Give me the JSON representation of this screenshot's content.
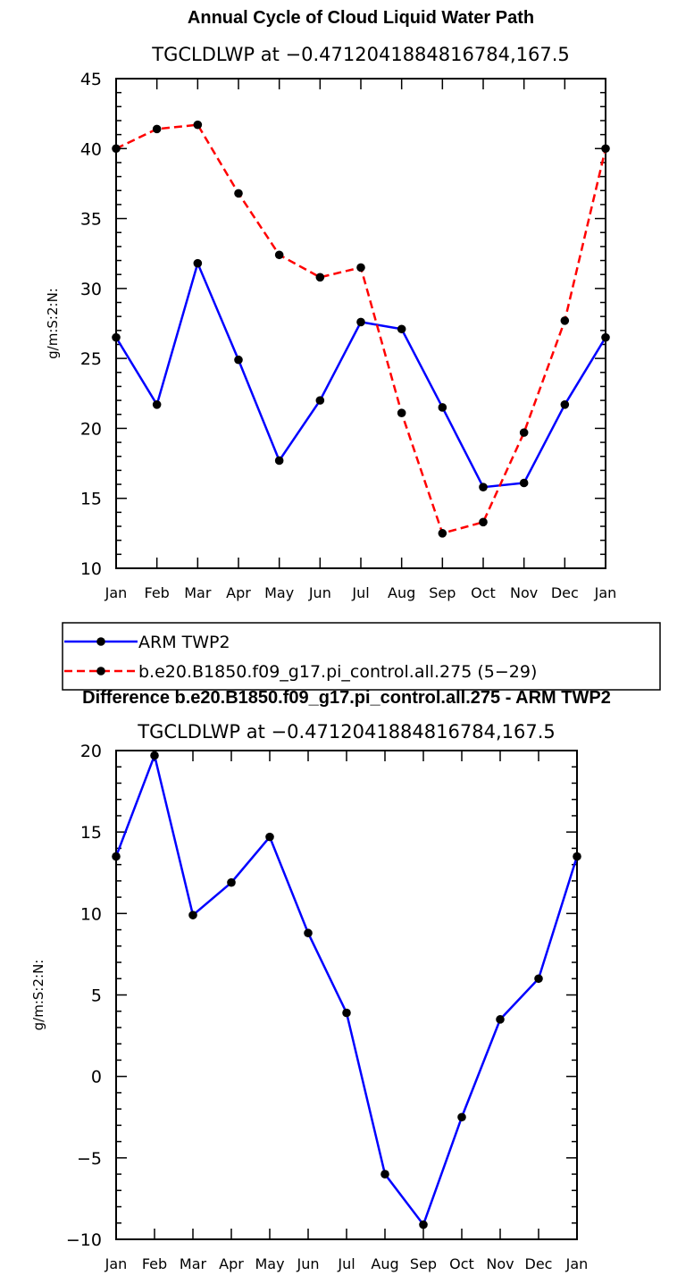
{
  "chart_data": [
    {
      "type": "line",
      "title": "Annual Cycle of Cloud Liquid Water Path",
      "subtitle": "TGCLDLWP at −0.4712041884816784,167.5",
      "xlabel": "",
      "ylabel": "g/m:S:2:N:",
      "categories": [
        "Jan",
        "Feb",
        "Mar",
        "Apr",
        "May",
        "Jun",
        "Jul",
        "Aug",
        "Sep",
        "Oct",
        "Nov",
        "Dec",
        "Jan"
      ],
      "ylim": [
        10,
        45
      ],
      "yticks": [
        10,
        15,
        20,
        25,
        30,
        35,
        40,
        45
      ],
      "series": [
        {
          "name": "ARM TWP2",
          "color": "#0000ff",
          "dash": "solid",
          "values": [
            26.5,
            21.7,
            31.8,
            24.9,
            17.7,
            22.0,
            27.6,
            27.1,
            21.5,
            15.8,
            16.1,
            21.7,
            26.5
          ]
        },
        {
          "name": "b.e20.B1850.f09_g17.pi_control.all.275 (5−29)",
          "color": "#ff0000",
          "dash": "dashed",
          "values": [
            40.0,
            41.4,
            41.7,
            36.8,
            32.4,
            30.8,
            31.5,
            21.1,
            12.5,
            13.3,
            19.7,
            27.7,
            40.0
          ]
        }
      ]
    },
    {
      "type": "line",
      "title": "Difference b.e20.B1850.f09_g17.pi_control.all.275 - ARM TWP2",
      "subtitle": "TGCLDLWP at −0.4712041884816784,167.5",
      "xlabel": "",
      "ylabel": "g/m:S:2:N:",
      "categories": [
        "Jan",
        "Feb",
        "Mar",
        "Apr",
        "May",
        "Jun",
        "Jul",
        "Aug",
        "Sep",
        "Oct",
        "Nov",
        "Dec",
        "Jan"
      ],
      "ylim": [
        -10,
        20
      ],
      "yticks": [
        -10,
        -5,
        0,
        5,
        10,
        15,
        20
      ],
      "ytick_labels": [
        "−10",
        "−5",
        "0",
        "5",
        "10",
        "15",
        "20"
      ],
      "series": [
        {
          "name": "Difference",
          "color": "#0000ff",
          "dash": "solid",
          "values": [
            13.5,
            19.7,
            9.9,
            11.9,
            14.7,
            8.8,
            3.9,
            -6.0,
            -9.1,
            -2.5,
            3.5,
            6.0,
            13.5
          ]
        }
      ]
    }
  ]
}
